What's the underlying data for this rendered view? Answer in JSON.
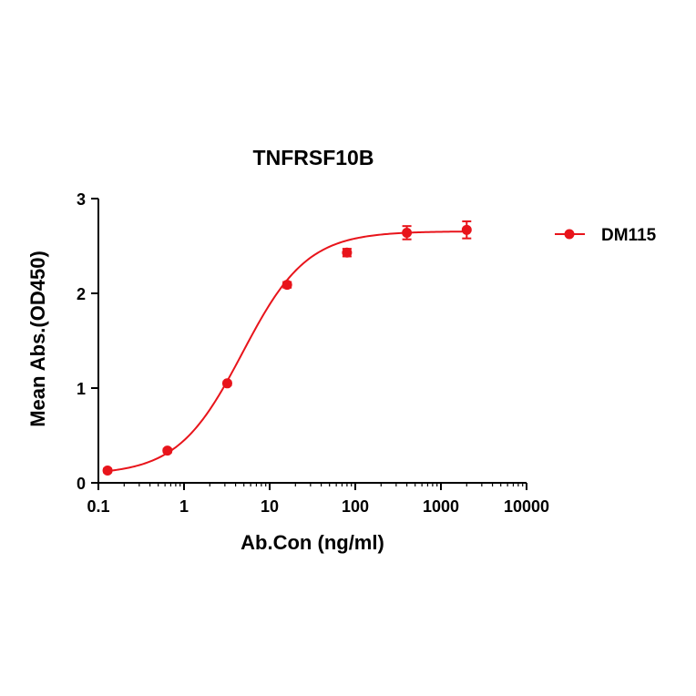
{
  "chart_data": {
    "type": "scatter",
    "title": "TNFRSF10B",
    "xlabel": "Ab.Con (ng/ml)",
    "ylabel": "Mean Abs.(OD450)",
    "x_scale": "log",
    "xlim": [
      0.1,
      10000
    ],
    "ylim": [
      0,
      3
    ],
    "x_ticks": [
      0.1,
      1,
      10,
      100,
      1000,
      10000
    ],
    "x_tick_labels": [
      "0.1",
      "1",
      "10",
      "100",
      "1000",
      "10000"
    ],
    "y_ticks": [
      0,
      1,
      2,
      3
    ],
    "y_tick_labels": [
      "0",
      "1",
      "2",
      "3"
    ],
    "grid": false,
    "legend_position": "right",
    "series": [
      {
        "name": "DM115",
        "color": "#e8141b",
        "x": [
          0.128,
          0.64,
          3.2,
          16,
          80,
          400,
          2000
        ],
        "y": [
          0.13,
          0.34,
          1.05,
          2.09,
          2.43,
          2.64,
          2.67
        ],
        "error": [
          0.02,
          0.02,
          0.02,
          0.03,
          0.04,
          0.07,
          0.09
        ],
        "fit_curve": "sigmoidal"
      }
    ]
  }
}
